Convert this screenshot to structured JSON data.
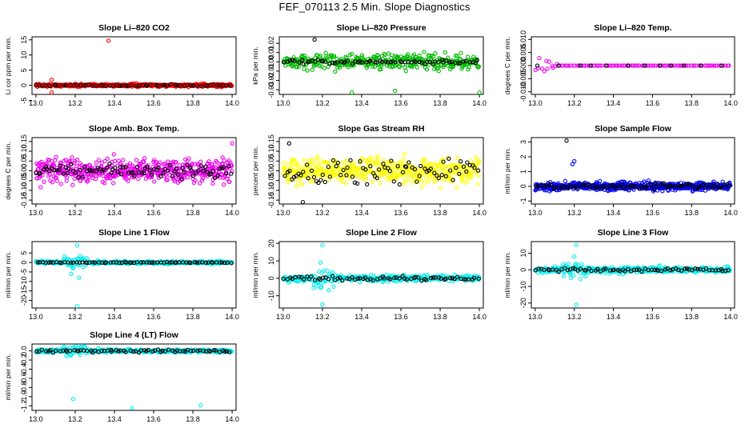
{
  "title": "FEF_070113  2.5 Min. Slope Diagnostics",
  "chart_data": [
    {
      "id": "co2",
      "type": "scatter",
      "title": "Slope Li–820 CO2",
      "ylabel": "Li cor ppm per min.",
      "xlim": [
        12.98,
        14.02
      ],
      "ylim": [
        -3,
        16
      ],
      "xticks": [
        "13.0",
        "13.2",
        "13.4",
        "13.6",
        "13.8",
        "14.0"
      ],
      "yticks": [
        "-5",
        "0",
        "5",
        "10",
        "15"
      ],
      "ytick_values": [
        -5,
        0,
        5,
        10,
        15
      ],
      "series": [
        {
          "name": "all",
          "color": "#ff0000",
          "center": 0,
          "spread": 0.45,
          "count": 420
        },
        {
          "name": "selected",
          "color": "#000000",
          "center": 0,
          "spread": 0.25,
          "count": 60
        }
      ],
      "outliers": [
        {
          "x": 13.37,
          "y": 14.7,
          "color": "#ff0000"
        },
        {
          "x": 13.08,
          "y": -2.4,
          "color": "#ff0000"
        },
        {
          "x": 13.08,
          "y": 1.8,
          "color": "#ff0000"
        }
      ]
    },
    {
      "id": "pressure",
      "type": "scatter",
      "title": "Slope Li–820 Pressure",
      "ylabel": "kPa per min.",
      "xlim": [
        12.98,
        14.02
      ],
      "ylim": [
        -0.035,
        0.027
      ],
      "xticks": [
        "13.0",
        "13.2",
        "13.4",
        "13.6",
        "13.8",
        "14.0"
      ],
      "yticks": [
        "-0.03",
        "-0.02",
        "-0.01",
        "0.00",
        "0.01",
        "0.02"
      ],
      "ytick_values": [
        -0.03,
        -0.02,
        -0.01,
        0,
        0.01,
        0.02
      ],
      "series": [
        {
          "name": "all",
          "color": "#00bb00",
          "center": 0,
          "spread": 0.008,
          "count": 360
        },
        {
          "name": "selected",
          "color": "#000000",
          "center": 0,
          "spread": 0.002,
          "count": 70
        }
      ],
      "outliers": [
        {
          "x": 13.16,
          "y": 0.024,
          "color": "#000000"
        },
        {
          "x": 13.35,
          "y": -0.033,
          "color": "#00bb00"
        },
        {
          "x": 13.57,
          "y": -0.031,
          "color": "#00bb00"
        },
        {
          "x": 14.0,
          "y": -0.033,
          "color": "#00bb00"
        }
      ]
    },
    {
      "id": "temp",
      "type": "scatter",
      "title": "Slope Li–820 Temp.",
      "ylabel": "degrees C per min.",
      "xlim": [
        12.98,
        14.02
      ],
      "ylim": [
        -0.011,
        0.011
      ],
      "xticks": [
        "13.0",
        "13.2",
        "13.4",
        "13.6",
        "13.8",
        "14.0"
      ],
      "yticks": [
        "-0.010",
        "-0.005",
        "0.000",
        "0.005",
        "0.010"
      ],
      "ytick_values": [
        -0.01,
        -0.005,
        0,
        0.005,
        0.01
      ],
      "series": [
        {
          "name": "all",
          "color": "#ee00ee",
          "center": 0,
          "spread": 0.0,
          "count": 100
        },
        {
          "name": "selected",
          "color": "#000000",
          "center": 0,
          "spread": 0.0,
          "count": 12
        }
      ],
      "outliers": []
    },
    {
      "id": "boxtemp",
      "type": "scatter",
      "title": "Slope Amb. Box Temp.",
      "ylabel": "degrees C per min.",
      "xlim": [
        12.98,
        14.02
      ],
      "ylim": [
        -0.17,
        0.17
      ],
      "xticks": [
        "13.0",
        "13.2",
        "13.4",
        "13.6",
        "13.8",
        "14.0"
      ],
      "yticks": [
        "-0.15",
        "-0.10",
        "-0.05",
        "0.00",
        "0.05",
        "0.10",
        "0.15"
      ],
      "ytick_values": [
        -0.15,
        -0.1,
        -0.05,
        0,
        0.05,
        0.1,
        0.15
      ],
      "series": [
        {
          "name": "all",
          "color": "#ee00ee",
          "center": 0,
          "spread": 0.055,
          "count": 520
        },
        {
          "name": "selected",
          "color": "#000000",
          "center": 0,
          "spread": 0.035,
          "count": 90
        }
      ],
      "outliers": [
        {
          "x": 14.0,
          "y": 0.14,
          "color": "#ee00ee"
        }
      ]
    },
    {
      "id": "rh",
      "type": "scatter",
      "title": "Slope Gas Stream RH",
      "ylabel": "percent per min.",
      "xlim": [
        12.98,
        14.02
      ],
      "ylim": [
        -0.17,
        0.17
      ],
      "xticks": [
        "13.0",
        "13.2",
        "13.4",
        "13.6",
        "13.8",
        "14.0"
      ],
      "yticks": [
        "-0.15",
        "-0.10",
        "-0.05",
        "0.00",
        "0.05",
        "0.10",
        "0.15"
      ],
      "ytick_values": [
        -0.15,
        -0.1,
        -0.05,
        0,
        0.05,
        0.1,
        0.15
      ],
      "series": [
        {
          "name": "all",
          "color": "#ffff00",
          "center": 0,
          "spread": 0.06,
          "count": 480
        },
        {
          "name": "selected",
          "color": "#000000",
          "center": 0,
          "spread": 0.06,
          "count": 80
        }
      ],
      "outliers": [
        {
          "x": 13.03,
          "y": 0.14,
          "color": "#000000"
        },
        {
          "x": 13.1,
          "y": -0.16,
          "color": "#000000"
        }
      ]
    },
    {
      "id": "sampleflow",
      "type": "scatter",
      "title": "Slope Sample Flow",
      "ylabel": "ml/min per min.",
      "xlim": [
        12.98,
        14.02
      ],
      "ylim": [
        -1.2,
        3.3
      ],
      "xticks": [
        "13.0",
        "13.2",
        "13.4",
        "13.6",
        "13.8",
        "14.0"
      ],
      "yticks": [
        "-1",
        "0",
        "1",
        "2",
        "3"
      ],
      "ytick_values": [
        -1,
        0,
        1,
        2,
        3
      ],
      "series": [
        {
          "name": "all",
          "color": "#0000ee",
          "center": 0,
          "spread": 0.28,
          "count": 520
        },
        {
          "name": "selected",
          "color": "#000000",
          "center": 0,
          "spread": 0.15,
          "count": 80
        }
      ],
      "outliers": [
        {
          "x": 13.16,
          "y": 3.1,
          "color": "#000000"
        },
        {
          "x": 13.2,
          "y": 1.7,
          "color": "#0000ee"
        },
        {
          "x": 13.19,
          "y": 1.5,
          "color": "#0000ee"
        }
      ]
    },
    {
      "id": "line1",
      "type": "scatter",
      "title": "Slope Line 1 Flow",
      "ylabel": "ml/min per min.",
      "xlim": [
        12.98,
        14.02
      ],
      "ylim": [
        -24,
        11
      ],
      "xticks": [
        "13.0",
        "13.2",
        "13.4",
        "13.6",
        "13.8",
        "14.0"
      ],
      "yticks": [
        "-20",
        "-15",
        "-10",
        "-5",
        "0",
        "5"
      ],
      "ytick_values": [
        -20,
        -15,
        -10,
        -5,
        0,
        5
      ],
      "series": [
        {
          "name": "all",
          "color": "#00eeee",
          "center": 0,
          "spread": 0.8,
          "count": 320
        },
        {
          "name": "selected",
          "color": "#000000",
          "center": 0,
          "spread": 0.2,
          "count": 70
        }
      ],
      "outliers": [
        {
          "x": 13.21,
          "y": -23,
          "color": "#00eeee"
        },
        {
          "x": 13.21,
          "y": 9,
          "color": "#00eeee"
        },
        {
          "x": 13.18,
          "y": -6,
          "color": "#00eeee"
        },
        {
          "x": 13.22,
          "y": -8,
          "color": "#00eeee"
        }
      ]
    },
    {
      "id": "line2",
      "type": "scatter",
      "title": "Slope Line 2 Flow",
      "ylabel": "ml/min per min.",
      "xlim": [
        12.98,
        14.02
      ],
      "ylim": [
        -17,
        21
      ],
      "xticks": [
        "13.0",
        "13.2",
        "13.4",
        "13.6",
        "13.8",
        "14.0"
      ],
      "yticks": [
        "-10",
        "0",
        "10",
        "20"
      ],
      "ytick_values": [
        -10,
        0,
        10,
        20
      ],
      "series": [
        {
          "name": "all",
          "color": "#00eeee",
          "center": 0,
          "spread": 1.8,
          "count": 320
        },
        {
          "name": "selected",
          "color": "#000000",
          "center": 0,
          "spread": 1.2,
          "count": 70
        }
      ],
      "outliers": [
        {
          "x": 13.2,
          "y": 19,
          "color": "#00eeee"
        },
        {
          "x": 13.2,
          "y": -15,
          "color": "#00eeee"
        },
        {
          "x": 13.19,
          "y": 9,
          "color": "#00eeee"
        }
      ]
    },
    {
      "id": "line3",
      "type": "scatter",
      "title": "Slope Line 3 Flow",
      "ylabel": "ml/min per min.",
      "xlim": [
        12.98,
        14.02
      ],
      "ylim": [
        -23,
        17
      ],
      "xticks": [
        "13.0",
        "13.2",
        "13.4",
        "13.6",
        "13.8",
        "14.0"
      ],
      "yticks": [
        "-20",
        "-10",
        "0",
        "10"
      ],
      "ytick_values": [
        -20,
        -10,
        0,
        10
      ],
      "series": [
        {
          "name": "all",
          "color": "#00eeee",
          "center": 0,
          "spread": 1.8,
          "count": 320
        },
        {
          "name": "selected",
          "color": "#000000",
          "center": 0,
          "spread": 1.0,
          "count": 70
        }
      ],
      "outliers": [
        {
          "x": 13.21,
          "y": -21,
          "color": "#00eeee"
        },
        {
          "x": 13.21,
          "y": 15,
          "color": "#00eeee"
        },
        {
          "x": 13.2,
          "y": 8,
          "color": "#00eeee"
        }
      ]
    },
    {
      "id": "line4",
      "type": "scatter",
      "title": "Slope Line 4 (LT) Flow",
      "ylabel": "ml/min per min.",
      "xlim": [
        12.98,
        14.02
      ],
      "ylim": [
        -1.3,
        0.15
      ],
      "xticks": [
        "13.0",
        "13.2",
        "13.4",
        "13.6",
        "13.8",
        "14.0"
      ],
      "yticks": [
        "-1.2",
        "-1.0",
        "-0.8",
        "-0.6",
        "-0.4",
        "-0.2",
        "0.0"
      ],
      "ytick_values": [
        -1.2,
        -1.0,
        -0.8,
        -0.6,
        -0.4,
        -0.2,
        0.0
      ],
      "series": [
        {
          "name": "all",
          "color": "#00eeee",
          "center": 0,
          "spread": 0.035,
          "count": 320
        },
        {
          "name": "selected",
          "color": "#000000",
          "center": 0,
          "spread": 0.03,
          "count": 70
        }
      ],
      "outliers": [
        {
          "x": 13.19,
          "y": -1.05,
          "color": "#00eeee"
        },
        {
          "x": 13.49,
          "y": -1.25,
          "color": "#00eeee"
        },
        {
          "x": 13.84,
          "y": -1.19,
          "color": "#00eeee"
        }
      ]
    }
  ]
}
